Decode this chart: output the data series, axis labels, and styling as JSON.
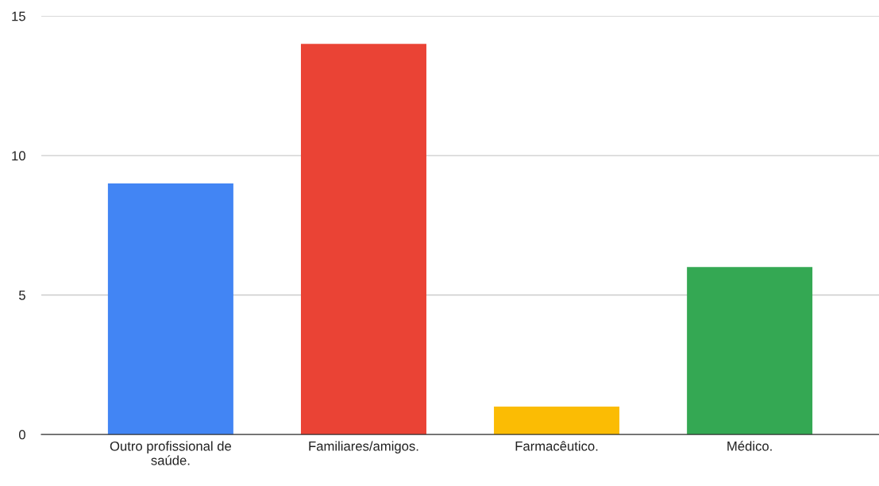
{
  "chart_data": {
    "type": "bar",
    "categories": [
      "Outro profissional de saúde.",
      "Familiares/amigos.",
      "Farmacêutico.",
      "Médico."
    ],
    "values": [
      9,
      14,
      1,
      6
    ],
    "colors": [
      "#4285f4",
      "#ea4335",
      "#fbbc04",
      "#34a853"
    ],
    "ylim": [
      0,
      15
    ],
    "yticks": [
      0,
      5,
      10,
      15
    ],
    "grid": "y",
    "legend": false
  }
}
